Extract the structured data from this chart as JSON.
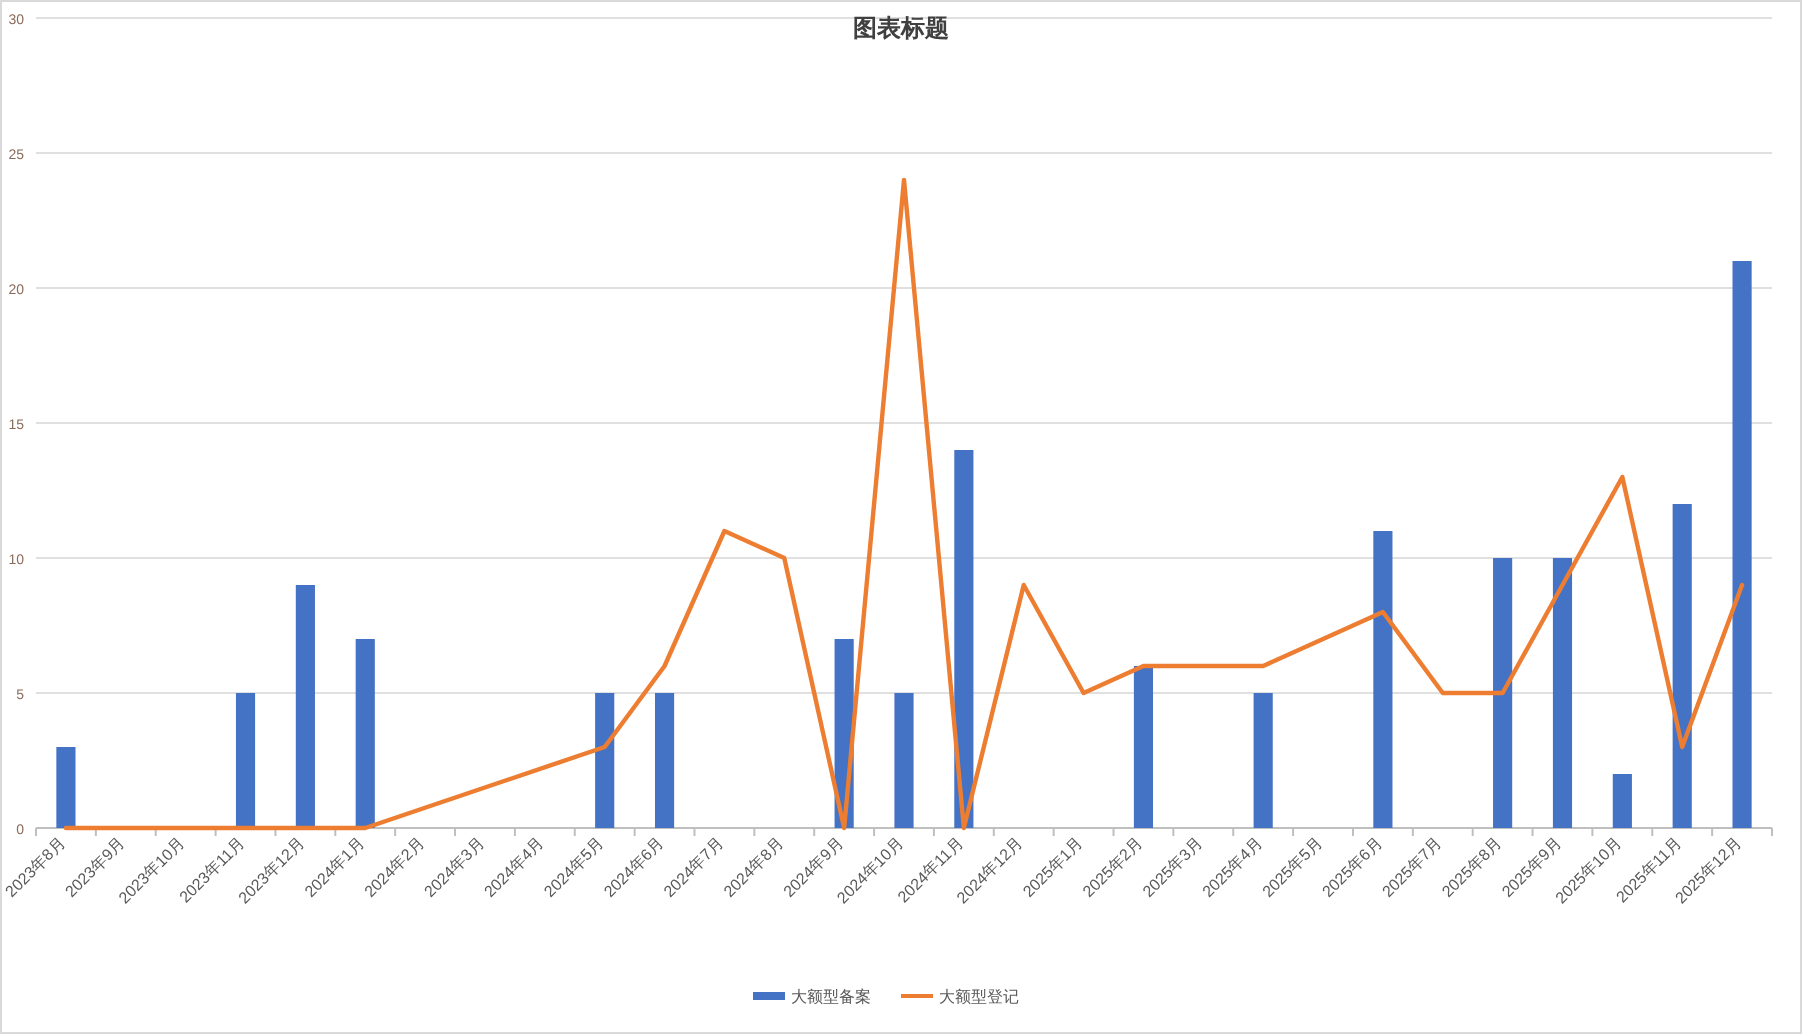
{
  "chart_data": {
    "type": "bar",
    "title": "图表标题",
    "categories": [
      "2023年8月",
      "2023年9月",
      "2023年10月",
      "2023年11月",
      "2023年12月",
      "2024年1月",
      "2024年2月",
      "2024年3月",
      "2024年4月",
      "2024年5月",
      "2024年6月",
      "2024年7月",
      "2024年8月",
      "2024年9月",
      "2024年10月",
      "2024年11月",
      "2024年12月",
      "2025年1月",
      "2025年2月",
      "2025年3月",
      "2025年4月",
      "2025年5月",
      "2025年6月",
      "2025年7月",
      "2025年8月",
      "2025年9月",
      "2025年10月",
      "2025年11月",
      "2025年12月"
    ],
    "series": [
      {
        "name": "大额型备案",
        "color": "#4472c4",
        "values": [
          3,
          0,
          0,
          5,
          9,
          7,
          0,
          0,
          0,
          5,
          5,
          0,
          0,
          7,
          5,
          14,
          0,
          0,
          6,
          0,
          5,
          0,
          11,
          0,
          10,
          10,
          2,
          12,
          21
        ]
      },
      {
        "name": "大额型登记",
        "type": "line",
        "color": "#ed7d31",
        "values": [
          0,
          0,
          0,
          0,
          0,
          0,
          null,
          null,
          null,
          3,
          6,
          11,
          10,
          0,
          24,
          0,
          9,
          5,
          6,
          6,
          6,
          7,
          8,
          5,
          5,
          9,
          13,
          3,
          9
        ]
      }
    ],
    "ylim": [
      0,
      30
    ],
    "yticks": [
      0,
      5,
      10,
      15,
      20,
      25,
      30
    ],
    "grid": "y",
    "legend": "bottom"
  }
}
